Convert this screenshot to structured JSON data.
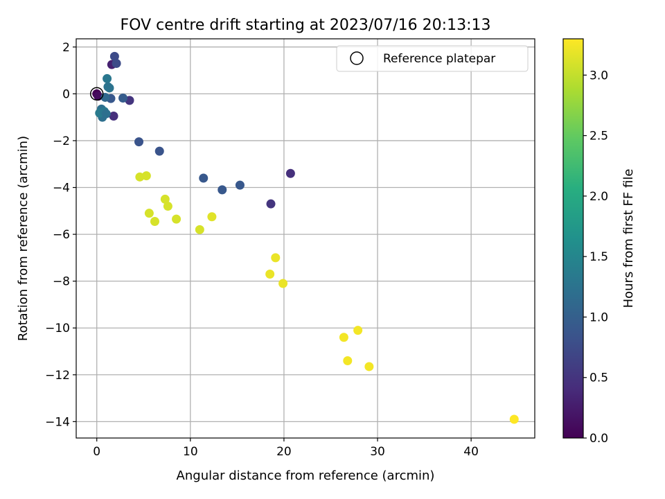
{
  "chart_data": {
    "type": "scatter",
    "title": "FOV centre drift starting at 2023/07/16 20:13:13",
    "xlabel": "Angular distance from reference (arcmin)",
    "ylabel": "Rotation from reference (arcmin)",
    "xlim": [
      -2.2,
      46.8
    ],
    "ylim": [
      -14.7,
      2.35
    ],
    "xticks": [
      0,
      10,
      20,
      30,
      40
    ],
    "yticks": [
      2,
      0,
      -2,
      -4,
      -6,
      -8,
      -10,
      -12,
      -14
    ],
    "xtick_labels": [
      "0",
      "10",
      "20",
      "30",
      "40"
    ],
    "ytick_labels": [
      "2",
      "0",
      "−2",
      "−4",
      "−6",
      "−8",
      "−10",
      "−12",
      "−14"
    ],
    "grid": true,
    "legend": {
      "placement": "top-right",
      "label": "Reference platepar"
    },
    "reference_point": {
      "x": 0,
      "y": 0
    },
    "colorbar": {
      "label": "Hours from first FF file",
      "range": [
        0,
        3.3
      ],
      "ticks": [
        0.0,
        0.5,
        1.0,
        1.5,
        2.0,
        2.5,
        3.0
      ],
      "tick_labels": [
        "0.0",
        "0.5",
        "1.0",
        "1.5",
        "2.0",
        "2.5",
        "3.0"
      ],
      "colormap": "viridis"
    },
    "points": [
      {
        "x": 0.0,
        "y": 0.0,
        "c": 0.0
      },
      {
        "x": 0.15,
        "y": -0.1,
        "c": 0.1
      },
      {
        "x": 1.6,
        "y": 1.25,
        "c": 0.3
      },
      {
        "x": 1.8,
        "y": -0.95,
        "c": 0.45
      },
      {
        "x": 3.5,
        "y": -0.28,
        "c": 0.5
      },
      {
        "x": 20.7,
        "y": -3.4,
        "c": 0.45
      },
      {
        "x": 18.6,
        "y": -4.7,
        "c": 0.5
      },
      {
        "x": 1.9,
        "y": 1.6,
        "c": 0.75
      },
      {
        "x": 2.1,
        "y": 1.3,
        "c": 0.75
      },
      {
        "x": 1.5,
        "y": -0.2,
        "c": 0.9
      },
      {
        "x": 2.8,
        "y": -0.18,
        "c": 0.95
      },
      {
        "x": 4.5,
        "y": -2.05,
        "c": 0.85
      },
      {
        "x": 6.7,
        "y": -2.45,
        "c": 0.85
      },
      {
        "x": 11.4,
        "y": -3.6,
        "c": 0.9
      },
      {
        "x": 13.4,
        "y": -4.1,
        "c": 0.9
      },
      {
        "x": 15.3,
        "y": -3.9,
        "c": 0.9
      },
      {
        "x": 0.9,
        "y": -0.15,
        "c": 1.1
      },
      {
        "x": 0.5,
        "y": -0.65,
        "c": 1.2
      },
      {
        "x": 0.6,
        "y": -1.0,
        "c": 1.2
      },
      {
        "x": 1.1,
        "y": 0.65,
        "c": 1.3
      },
      {
        "x": 1.2,
        "y": 0.3,
        "c": 1.25
      },
      {
        "x": 1.35,
        "y": 0.25,
        "c": 1.25
      },
      {
        "x": 0.3,
        "y": -0.82,
        "c": 1.35
      },
      {
        "x": 0.8,
        "y": -0.75,
        "c": 1.3
      },
      {
        "x": 1.0,
        "y": -0.85,
        "c": 1.2
      },
      {
        "x": 4.6,
        "y": -3.55,
        "c": 3.1
      },
      {
        "x": 5.3,
        "y": -3.5,
        "c": 3.1
      },
      {
        "x": 5.6,
        "y": -5.1,
        "c": 3.1
      },
      {
        "x": 6.2,
        "y": -5.45,
        "c": 3.1
      },
      {
        "x": 7.3,
        "y": -4.5,
        "c": 3.1
      },
      {
        "x": 7.6,
        "y": -4.8,
        "c": 3.1
      },
      {
        "x": 8.5,
        "y": -5.35,
        "c": 3.1
      },
      {
        "x": 11.0,
        "y": -5.8,
        "c": 3.1
      },
      {
        "x": 12.3,
        "y": -5.25,
        "c": 3.15
      },
      {
        "x": 18.5,
        "y": -7.7,
        "c": 3.2
      },
      {
        "x": 19.1,
        "y": -7.0,
        "c": 3.2
      },
      {
        "x": 19.9,
        "y": -8.1,
        "c": 3.2
      },
      {
        "x": 26.4,
        "y": -10.4,
        "c": 3.25
      },
      {
        "x": 26.8,
        "y": -11.4,
        "c": 3.25
      },
      {
        "x": 27.9,
        "y": -10.1,
        "c": 3.25
      },
      {
        "x": 29.1,
        "y": -11.65,
        "c": 3.25
      },
      {
        "x": 44.6,
        "y": -13.9,
        "c": 3.3
      }
    ]
  }
}
